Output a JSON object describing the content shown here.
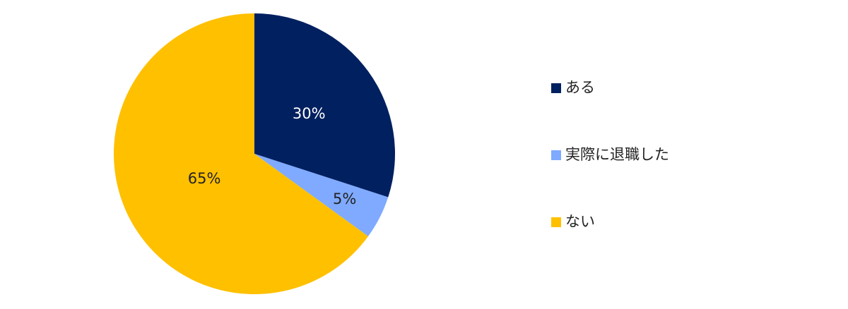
{
  "chart_data": {
    "type": "pie",
    "categories": [
      "ある",
      "実際に退職した",
      "ない"
    ],
    "values": [
      30,
      5,
      65
    ],
    "value_labels": [
      "30%",
      "5%",
      "65%"
    ],
    "colors": [
      "#002060",
      "#7faaff",
      "#ffc000"
    ],
    "legend": "right"
  }
}
